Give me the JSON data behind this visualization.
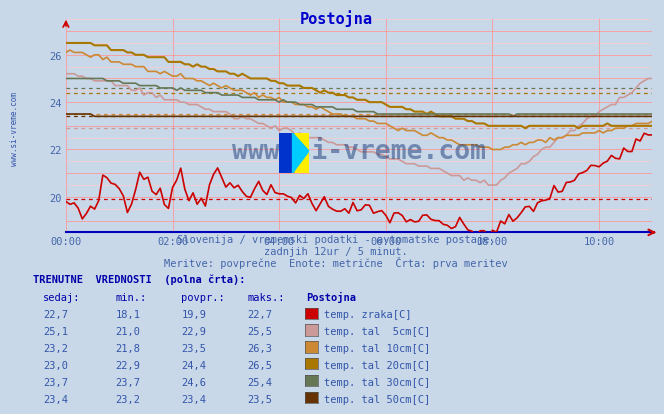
{
  "title": "Postojna",
  "subtitle1": "Slovenija / vremenski podatki - avtomatske postaje.",
  "subtitle2": "zadnjih 12ur / 5 minut.",
  "subtitle3": "Meritve: povprečne  Enote: metrične  Črta: prva meritev",
  "watermark": "www.si-vreme.com",
  "background_color": "#c8d8e8",
  "plot_bg_color": "#c8d8e8",
  "title_color": "#0000cc",
  "subtitle_color": "#4466aa",
  "watermark_color": "#1a3a7a",
  "label_color": "#4466aa",
  "xlabel_color": "#4466aa",
  "grid_color_major": "#ff9999",
  "grid_color_minor": "#ffcccc",
  "xlim": [
    0,
    132
  ],
  "ylim": [
    18.5,
    27.5
  ],
  "yticks": [
    20,
    22,
    24,
    26
  ],
  "xtick_positions": [
    0,
    24,
    48,
    72,
    96,
    120
  ],
  "xtick_labels": [
    "00:00",
    "02:00",
    "04:00",
    "06:00",
    "08:00",
    "10:00"
  ],
  "series": [
    {
      "name": "temp. zraka[C]",
      "color": "#cc0000",
      "lw": 1.2,
      "avg": 19.9,
      "swatch": "#cc0000"
    },
    {
      "name": "temp. tal  5cm[C]",
      "color": "#cc9999",
      "lw": 1.2,
      "avg": 22.9,
      "swatch": "#cc9999"
    },
    {
      "name": "temp. tal 10cm[C]",
      "color": "#cc8833",
      "lw": 1.2,
      "avg": 23.5,
      "swatch": "#cc8833"
    },
    {
      "name": "temp. tal 20cm[C]",
      "color": "#aa7700",
      "lw": 1.5,
      "avg": 24.4,
      "swatch": "#aa7700"
    },
    {
      "name": "temp. tal 30cm[C]",
      "color": "#667755",
      "lw": 1.2,
      "avg": 24.6,
      "swatch": "#667755"
    },
    {
      "name": "temp. tal 50cm[C]",
      "color": "#663300",
      "lw": 1.2,
      "avg": 23.4,
      "swatch": "#663300"
    }
  ],
  "table_header_color": "#0000aa",
  "table_data_color": "#3355aa",
  "table_rows": [
    {
      "sedaj": "22,7",
      "min": "18,1",
      "povpr": "19,9",
      "maks": "22,7",
      "label": "temp. zraka[C]",
      "swatch": "#cc0000"
    },
    {
      "sedaj": "25,1",
      "min": "21,0",
      "povpr": "22,9",
      "maks": "25,5",
      "label": "temp. tal  5cm[C]",
      "swatch": "#cc9999"
    },
    {
      "sedaj": "23,2",
      "min": "21,8",
      "povpr": "23,5",
      "maks": "26,3",
      "label": "temp. tal 10cm[C]",
      "swatch": "#cc8833"
    },
    {
      "sedaj": "23,0",
      "min": "22,9",
      "povpr": "24,4",
      "maks": "26,5",
      "label": "temp. tal 20cm[C]",
      "swatch": "#aa7700"
    },
    {
      "sedaj": "23,7",
      "min": "23,7",
      "povpr": "24,6",
      "maks": "25,4",
      "label": "temp. tal 30cm[C]",
      "swatch": "#667755"
    },
    {
      "sedaj": "23,4",
      "min": "23,2",
      "povpr": "23,4",
      "maks": "23,5",
      "label": "temp. tal 50cm[C]",
      "swatch": "#663300"
    }
  ]
}
